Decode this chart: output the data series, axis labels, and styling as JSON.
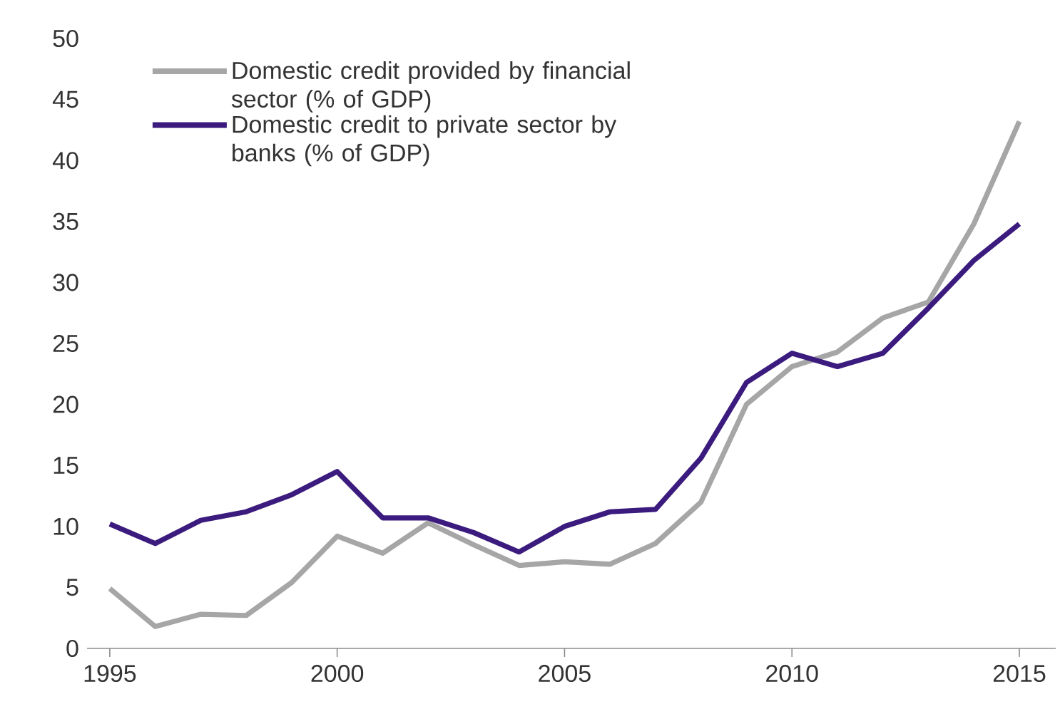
{
  "chart_data": {
    "type": "line",
    "x": [
      1995,
      1996,
      1997,
      1998,
      1999,
      2000,
      2001,
      2002,
      2003,
      2004,
      2005,
      2006,
      2007,
      2008,
      2009,
      2010,
      2011,
      2012,
      2013,
      2014,
      2015
    ],
    "series": [
      {
        "name": "Domestic credit provided by financial sector (% of GDP)",
        "color": "#a6a6a6",
        "values": [
          4.9,
          1.8,
          2.8,
          2.7,
          5.4,
          9.2,
          7.8,
          10.3,
          8.5,
          6.8,
          7.1,
          6.9,
          8.6,
          12.0,
          20.0,
          23.1,
          24.3,
          27.1,
          28.4,
          34.8,
          43.2
        ]
      },
      {
        "name": "Domestic credit to private sector by banks (% of GDP)",
        "color": "#3b1c7e",
        "values": [
          10.2,
          8.6,
          10.5,
          11.2,
          12.6,
          14.5,
          10.7,
          10.7,
          9.5,
          7.9,
          10.0,
          11.2,
          11.4,
          15.6,
          21.8,
          24.2,
          23.1,
          24.2,
          27.9,
          31.8,
          34.8
        ]
      }
    ],
    "xlim": [
      1994.5,
      2015.8
    ],
    "ylim": [
      0,
      50
    ],
    "xticks": [
      1995,
      2000,
      2005,
      2010,
      2015
    ],
    "yticks": [
      0,
      5,
      10,
      15,
      20,
      25,
      30,
      35,
      40,
      45,
      50
    ],
    "legend": "top left",
    "line_style": "solid"
  }
}
